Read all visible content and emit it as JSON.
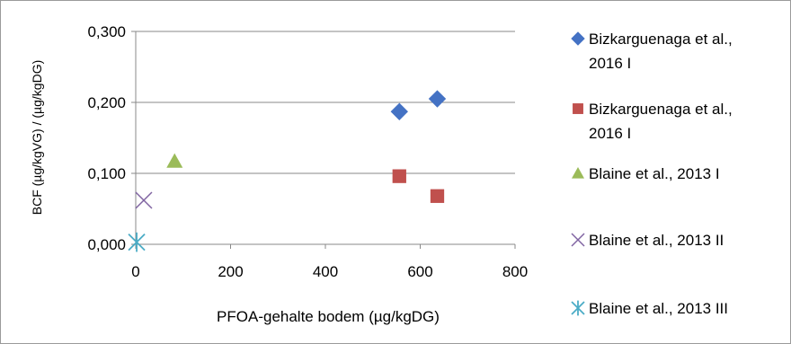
{
  "chart_data": {
    "type": "scatter",
    "title": "",
    "xlabel": "PFOA-gehalte bodem (µg/kgDG)",
    "ylabel": "BCF (µg/kgVG) / (µg/kgDG)",
    "xlim": [
      0,
      800
    ],
    "ylim": [
      0,
      0.3
    ],
    "xticks": [
      "0",
      "200",
      "400",
      "600",
      "800"
    ],
    "yticks": [
      "0,000",
      "0,100",
      "0,200",
      "0,300"
    ],
    "grid": "horizontal",
    "legend_position": "right",
    "series": [
      {
        "name": "Bizkarguenaga et al., 2016 I",
        "legend_lines": [
          "Bizkarguenaga et al.,",
          "2016 I"
        ],
        "marker": "diamond",
        "color": "#4472c4",
        "points": [
          [
            556,
            0.187
          ],
          [
            636,
            0.205
          ]
        ]
      },
      {
        "name": "Bizkarguenaga et al., 2016 I",
        "legend_lines": [
          "Bizkarguenaga et al.,",
          "2016 I"
        ],
        "marker": "square",
        "color": "#c0504d",
        "points": [
          [
            556,
            0.096
          ],
          [
            636,
            0.068
          ]
        ]
      },
      {
        "name": "Blaine et al., 2013 I",
        "legend_lines": [
          "Blaine et al., 2013 I"
        ],
        "marker": "triangle",
        "color": "#9bbb59",
        "points": [
          [
            82,
            0.117
          ]
        ]
      },
      {
        "name": "Blaine et al., 2013 II",
        "legend_lines": [
          "Blaine et al., 2013 II"
        ],
        "marker": "x",
        "color": "#8064a2",
        "points": [
          [
            17,
            0.062
          ]
        ]
      },
      {
        "name": "Blaine et al., 2013 III",
        "legend_lines": [
          "Blaine et al., 2013 III"
        ],
        "marker": "star",
        "color": "#4bacc6",
        "points": [
          [
            2,
            0.003
          ]
        ]
      }
    ]
  }
}
